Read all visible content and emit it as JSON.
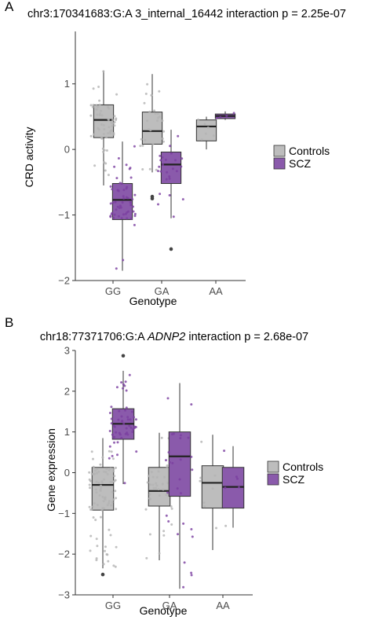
{
  "chart_data": [
    {
      "type": "box",
      "panel_label": "A",
      "title": {
        "prefix": "chr3:170341683:G:A 3_internal_16442 interaction p = 2.25e-07",
        "italic_gene": "",
        "suffix": ""
      },
      "xlabel": "Genotype",
      "ylabel": "CRD activity",
      "categories": [
        "GG",
        "GA",
        "AA"
      ],
      "yticks": [
        -2,
        -1,
        0,
        1
      ],
      "ylim": [
        -2.0,
        1.8
      ],
      "colors": {
        "Controls": "#bdbdbd",
        "SCZ": "#8a5aab",
        "Controls_point": "#b3b3b3",
        "SCZ_point": "#7b3fa0"
      },
      "legend": {
        "position": "right",
        "entries": [
          "Controls",
          "SCZ"
        ]
      },
      "series": [
        {
          "name": "Controls",
          "boxes": [
            {
              "category": "GG",
              "min": -0.55,
              "q1": 0.18,
              "median": 0.45,
              "q3": 0.68,
              "max": 1.2,
              "outliers": [],
              "n": 60
            },
            {
              "category": "GA",
              "min": -0.35,
              "q1": 0.08,
              "median": 0.28,
              "q3": 0.57,
              "max": 1.15,
              "outliers": [
                -0.72,
                -0.75
              ],
              "n": 28
            },
            {
              "category": "AA",
              "min": 0.0,
              "q1": 0.13,
              "median": 0.35,
              "q3": 0.45,
              "max": 0.5,
              "outliers": [],
              "n": 6
            }
          ]
        },
        {
          "name": "SCZ",
          "boxes": [
            {
              "category": "GG",
              "min": -1.85,
              "q1": -1.07,
              "median": -0.77,
              "q3": -0.52,
              "max": 0.12,
              "outliers": [],
              "n": 55
            },
            {
              "category": "GA",
              "min": -1.05,
              "q1": -0.52,
              "median": -0.23,
              "q3": -0.04,
              "max": 0.3,
              "outliers": [
                -1.52
              ],
              "n": 25
            },
            {
              "category": "AA",
              "min": 0.45,
              "q1": 0.47,
              "median": 0.51,
              "q3": 0.54,
              "max": 0.58,
              "outliers": [],
              "n": 4
            }
          ]
        }
      ]
    },
    {
      "type": "box",
      "panel_label": "B",
      "title": {
        "prefix": "chr18:77371706:G:A ",
        "italic_gene": "ADNP2",
        "suffix": " interaction p = 2.68e-07"
      },
      "xlabel": "Genotype",
      "ylabel": "Gene expression",
      "categories": [
        "GG",
        "GA",
        "AA"
      ],
      "yticks": [
        -3,
        -2,
        -1,
        0,
        1,
        2,
        3
      ],
      "ylim": [
        -3.0,
        3.0
      ],
      "colors": {
        "Controls": "#bdbdbd",
        "SCZ": "#8a5aab",
        "Controls_point": "#b3b3b3",
        "SCZ_point": "#7b3fa0"
      },
      "legend": {
        "position": "right",
        "entries": [
          "Controls",
          "SCZ"
        ]
      },
      "series": [
        {
          "name": "Controls",
          "boxes": [
            {
              "category": "GG",
              "min": -2.35,
              "q1": -0.92,
              "median": -0.3,
              "q3": 0.13,
              "max": 0.85,
              "outliers": [
                -2.5
              ],
              "n": 90
            },
            {
              "category": "GA",
              "min": -2.15,
              "q1": -0.82,
              "median": -0.45,
              "q3": 0.13,
              "max": 0.98,
              "outliers": [],
              "n": 40
            },
            {
              "category": "AA",
              "min": -1.9,
              "q1": -0.87,
              "median": -0.25,
              "q3": 0.17,
              "max": 0.93,
              "outliers": [],
              "n": 10
            }
          ]
        },
        {
          "name": "SCZ",
          "boxes": [
            {
              "category": "GG",
              "min": -0.28,
              "q1": 0.82,
              "median": 1.2,
              "q3": 1.57,
              "max": 2.5,
              "outliers": [
                2.87
              ],
              "n": 55
            },
            {
              "category": "GA",
              "min": -2.85,
              "q1": -0.58,
              "median": 0.4,
              "q3": 1.0,
              "max": 2.2,
              "outliers": [],
              "n": 28
            },
            {
              "category": "AA",
              "min": -1.35,
              "q1": -0.87,
              "median": -0.35,
              "q3": 0.13,
              "max": 0.65,
              "outliers": [],
              "n": 5
            }
          ]
        }
      ]
    }
  ]
}
